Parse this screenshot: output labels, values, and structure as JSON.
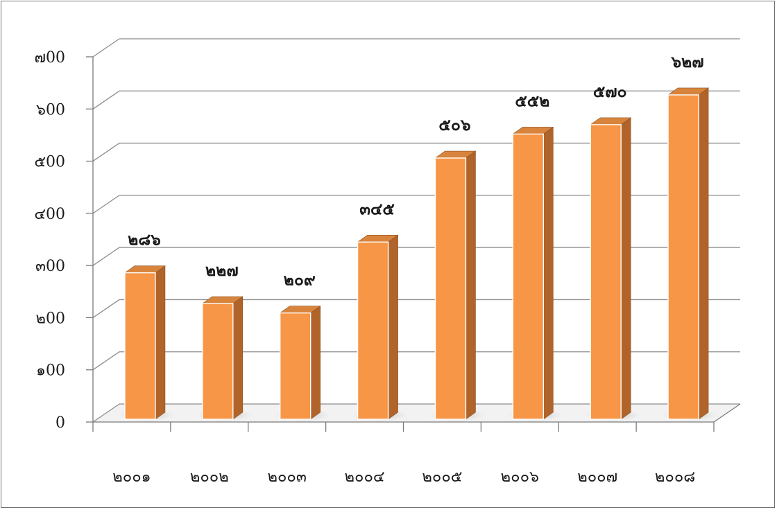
{
  "chart_data": {
    "type": "bar",
    "title": "",
    "xlabel": "",
    "ylabel": "",
    "categories": [
      "๒๐๐๑",
      "๒๐๐๒",
      "๒๐๐๓",
      "๒๐๐๔",
      "๒๐๐๕",
      "๒๐๐๖",
      "๒๐๐๗",
      "๒๐๐๘"
    ],
    "values": [
      286,
      227,
      209,
      345,
      506,
      552,
      570,
      627
    ],
    "value_labels": [
      "๒๘๖",
      "๒๒๗",
      "๒๐๙",
      "๓๔๕",
      "๕๐๖",
      "๕๕๒",
      "๕๗๐",
      "๖๒๗"
    ],
    "ylim": [
      0,
      700
    ],
    "y_ticks": [
      0,
      100,
      200,
      300,
      400,
      500,
      600,
      700
    ],
    "y_tick_labels": [
      "0",
      "๑00",
      "๒00",
      "๓00",
      "๔00",
      "๕00",
      "๖00",
      "๗00"
    ],
    "grid": true,
    "legend": "none",
    "colors": {
      "bar_front": "#f79646",
      "bar_side": "#b0642a",
      "bar_top": "#d8843c",
      "grid": "#8c8c8c",
      "axis": "#7a7a7a"
    }
  }
}
